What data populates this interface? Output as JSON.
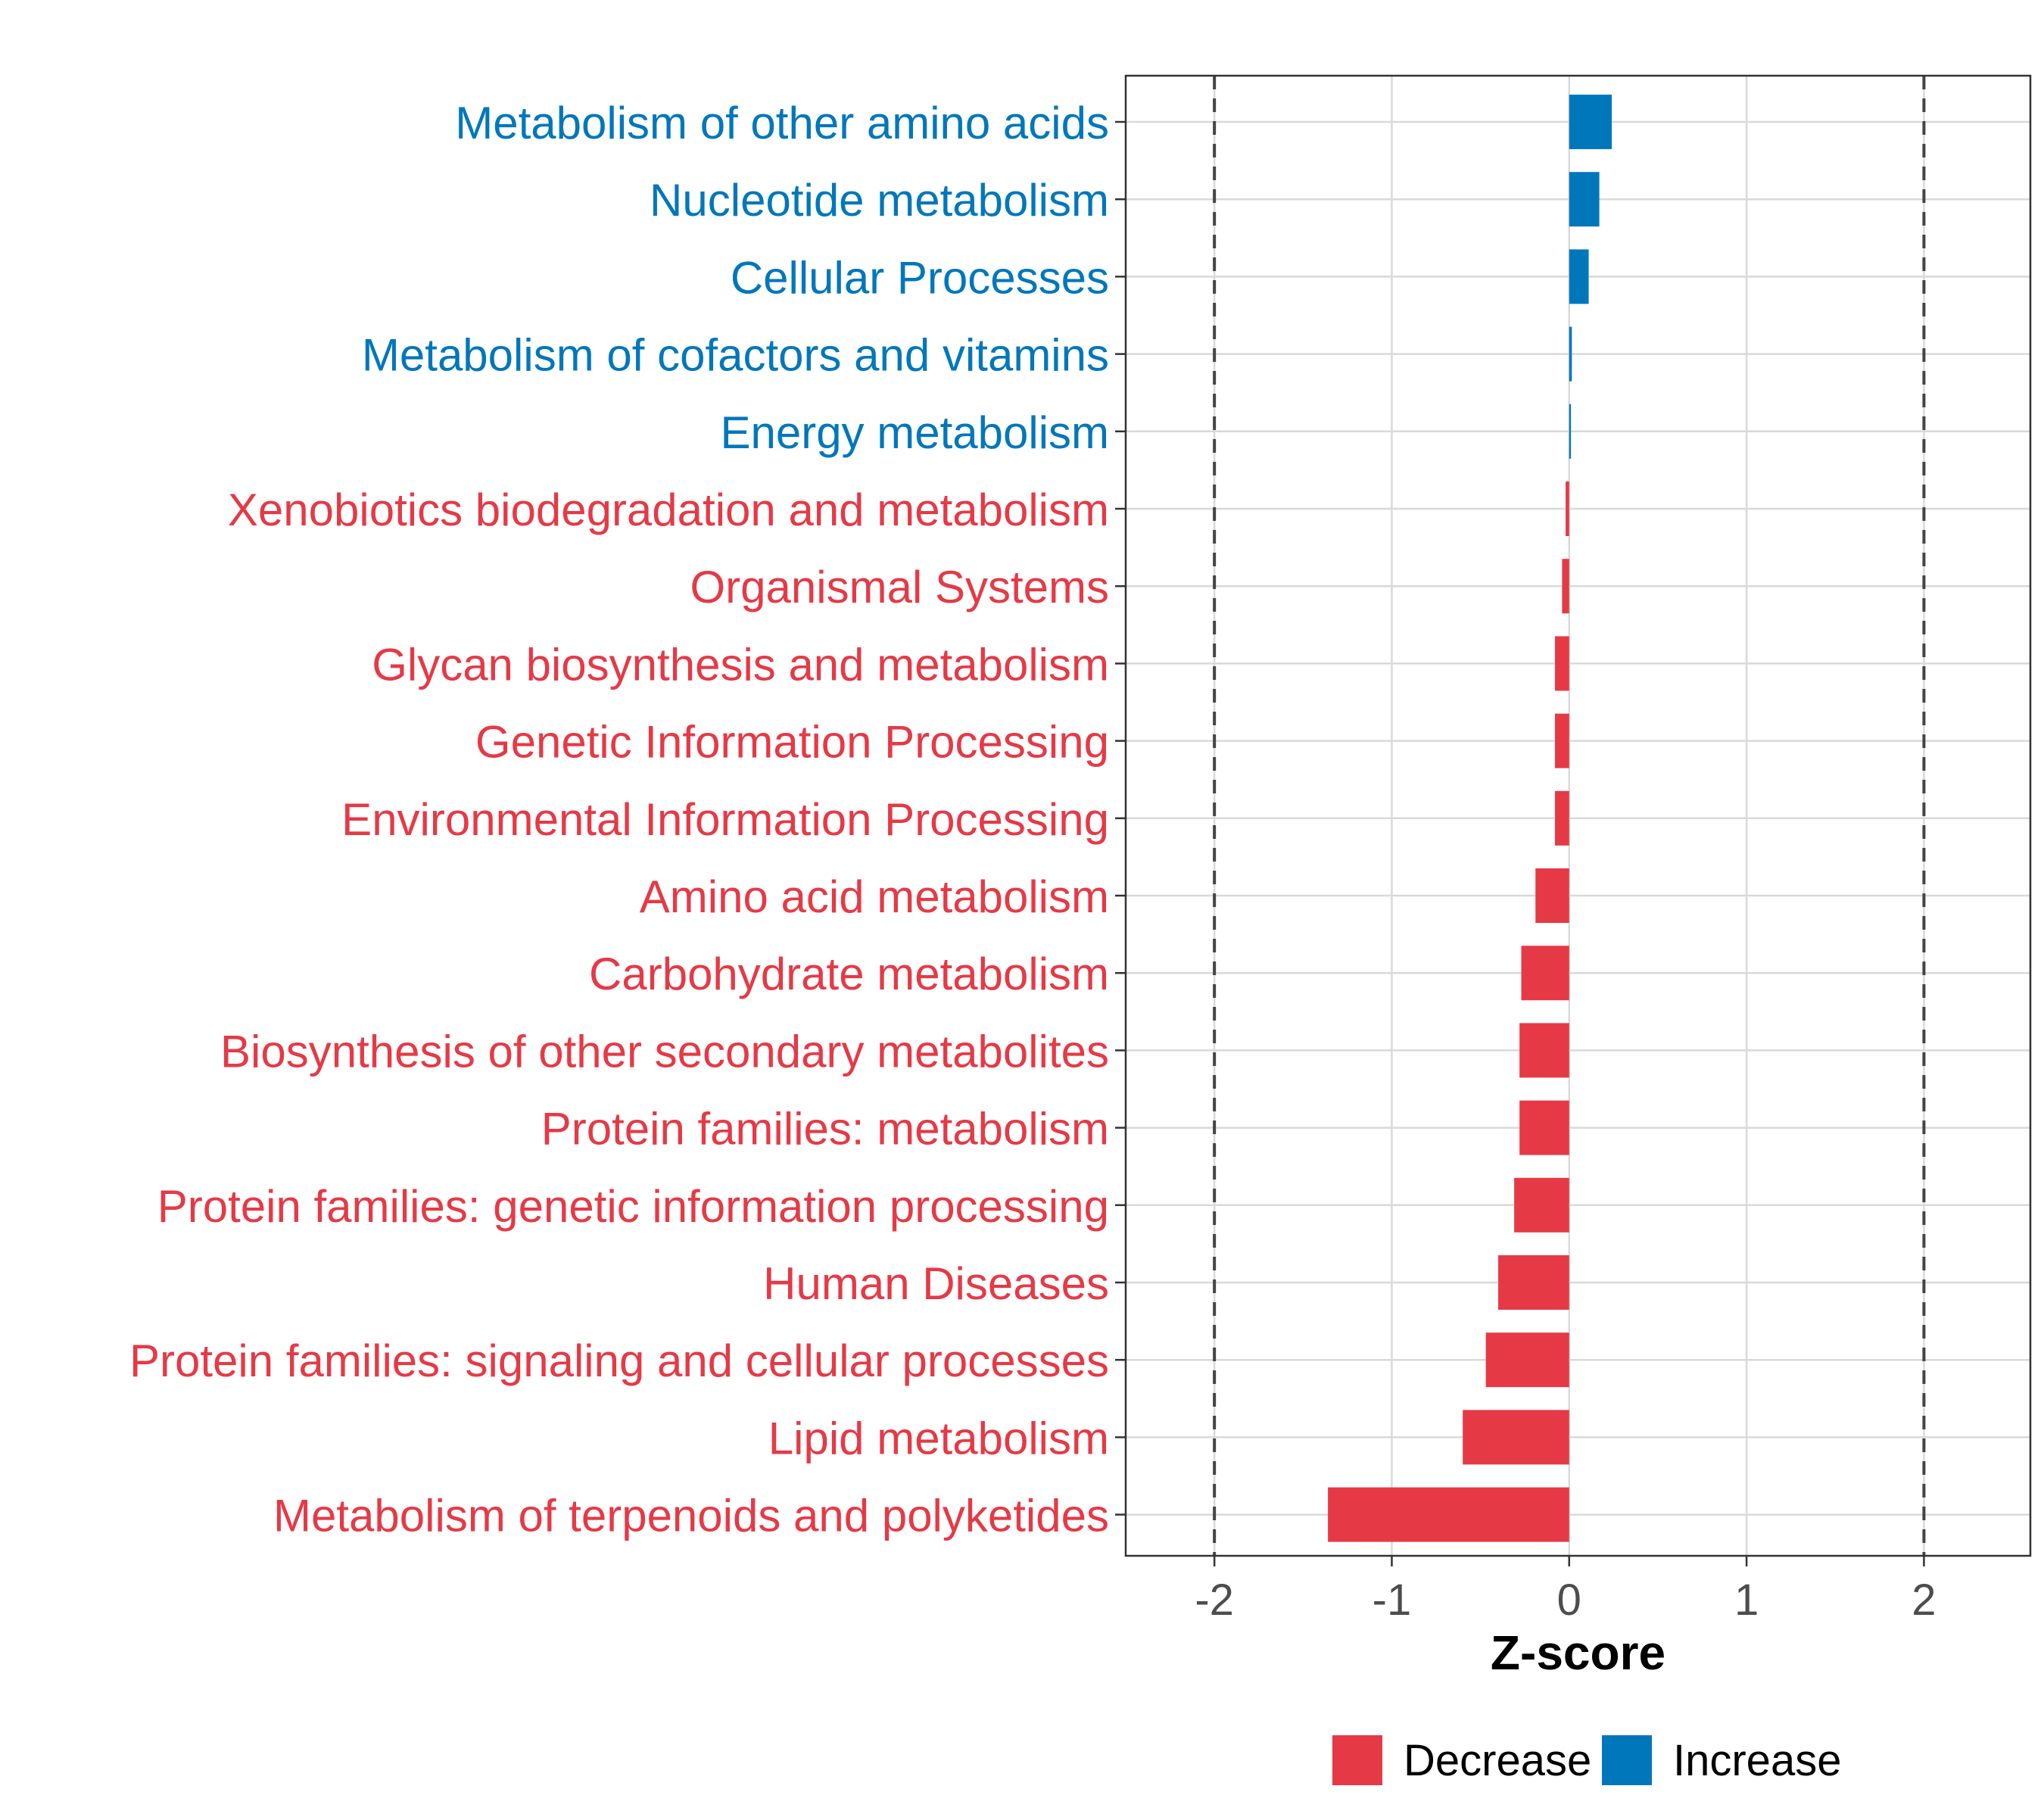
{
  "chart_data": {
    "type": "bar",
    "orientation": "horizontal",
    "title": "",
    "xlabel": "Z-score",
    "ylabel": "",
    "xlim": [
      -2.5,
      2.6
    ],
    "x_ticks": [
      -2,
      -1,
      0,
      1,
      2
    ],
    "x_tick_labels": [
      "-2",
      "-1",
      "0",
      "1",
      "2"
    ],
    "reference_lines": [
      -2,
      2
    ],
    "grid": true,
    "colors": {
      "Decrease": "#E63946",
      "Increase": "#0077BB"
    },
    "categories": [
      "Metabolism of other amino acids",
      "Nucleotide metabolism",
      "Cellular Processes",
      "Metabolism of cofactors and vitamins",
      "Energy metabolism",
      "Xenobiotics biodegradation and metabolism",
      "Organismal Systems",
      "Glycan biosynthesis and metabolism",
      "Genetic Information Processing",
      "Environmental Information Processing",
      "Amino acid metabolism",
      "Carbohydrate metabolism",
      "Biosynthesis of other secondary metabolites",
      "Protein families: metabolism",
      "Protein families: genetic information processing",
      "Human Diseases",
      "Protein families: signaling and cellular processes",
      "Lipid metabolism",
      "Metabolism of terpenoids and polyketides"
    ],
    "values": [
      0.24,
      0.17,
      0.11,
      0.015,
      0.01,
      -0.02,
      -0.04,
      -0.08,
      -0.08,
      -0.08,
      -0.19,
      -0.27,
      -0.28,
      -0.28,
      -0.31,
      -0.4,
      -0.47,
      -0.6,
      -1.36
    ],
    "groups": [
      "Increase",
      "Increase",
      "Increase",
      "Increase",
      "Increase",
      "Decrease",
      "Decrease",
      "Decrease",
      "Decrease",
      "Decrease",
      "Decrease",
      "Decrease",
      "Decrease",
      "Decrease",
      "Decrease",
      "Decrease",
      "Decrease",
      "Decrease",
      "Decrease"
    ],
    "legend": {
      "position": "bottom",
      "entries": [
        "Decrease",
        "Increase"
      ]
    }
  }
}
